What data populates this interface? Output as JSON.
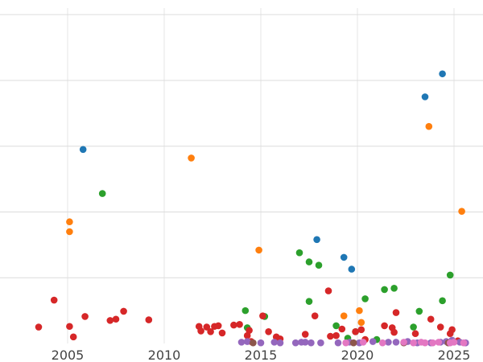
{
  "chart_data": {
    "type": "scatter",
    "title": "",
    "xlabel": "",
    "ylabel": "",
    "xlim": [
      2001.5,
      2026.5
    ],
    "ylim": [
      0,
      5.1
    ],
    "x_ticks": [
      2005,
      2010,
      2015,
      2020,
      2025
    ],
    "y_gridlines": [
      1,
      2,
      3,
      4,
      5
    ],
    "grid": true,
    "legend": "none",
    "series": [
      {
        "color": "#1f77b4",
        "points": [
          [
            2005.8,
            2.95
          ],
          [
            2017.9,
            1.58
          ],
          [
            2019.3,
            1.31
          ],
          [
            2019.7,
            1.13
          ],
          [
            2023.5,
            3.75
          ],
          [
            2024.4,
            4.1
          ]
        ]
      },
      {
        "color": "#ff7f0e",
        "points": [
          [
            2005.1,
            1.85
          ],
          [
            2005.1,
            1.7
          ],
          [
            2011.4,
            2.82
          ],
          [
            2014.9,
            1.42
          ],
          [
            2019.3,
            0.42
          ],
          [
            2020.1,
            0.5
          ],
          [
            2020.2,
            0.32
          ],
          [
            2023.7,
            3.3
          ],
          [
            2025.4,
            2.01
          ]
        ]
      },
      {
        "color": "#2ca02c",
        "points": [
          [
            2006.8,
            2.28
          ],
          [
            2014.2,
            0.5
          ],
          [
            2014.3,
            0.24
          ],
          [
            2015.2,
            0.41
          ],
          [
            2017.0,
            1.38
          ],
          [
            2017.5,
            1.24
          ],
          [
            2017.5,
            0.64
          ],
          [
            2018.0,
            1.19
          ],
          [
            2018.9,
            0.27
          ],
          [
            2019.9,
            0.18
          ],
          [
            2020.4,
            0.68
          ],
          [
            2021.4,
            0.82
          ],
          [
            2021.9,
            0.84
          ],
          [
            2022.9,
            0.25
          ],
          [
            2023.2,
            0.49
          ],
          [
            2024.4,
            0.65
          ],
          [
            2024.8,
            1.04
          ],
          [
            2019.5,
            0.08
          ],
          [
            2021.0,
            0.06
          ]
        ]
      },
      {
        "color": "#d62728",
        "points": [
          [
            2003.5,
            0.25
          ],
          [
            2004.3,
            0.66
          ],
          [
            2005.1,
            0.26
          ],
          [
            2005.3,
            0.1
          ],
          [
            2005.9,
            0.41
          ],
          [
            2007.2,
            0.35
          ],
          [
            2007.5,
            0.37
          ],
          [
            2007.9,
            0.49
          ],
          [
            2009.2,
            0.36
          ],
          [
            2011.8,
            0.26
          ],
          [
            2011.9,
            0.19
          ],
          [
            2012.2,
            0.25
          ],
          [
            2012.4,
            0.18
          ],
          [
            2012.6,
            0.26
          ],
          [
            2012.8,
            0.27
          ],
          [
            2013.0,
            0.16
          ],
          [
            2013.6,
            0.28
          ],
          [
            2013.9,
            0.29
          ],
          [
            2014.3,
            0.12
          ],
          [
            2014.4,
            0.2
          ],
          [
            2014.5,
            0.03
          ],
          [
            2015.1,
            0.42
          ],
          [
            2015.4,
            0.18
          ],
          [
            2015.8,
            0.1
          ],
          [
            2016.0,
            0.07
          ],
          [
            2017.3,
            0.14
          ],
          [
            2017.8,
            0.42
          ],
          [
            2018.5,
            0.8
          ],
          [
            2018.6,
            0.11
          ],
          [
            2018.9,
            0.12
          ],
          [
            2019.2,
            0.22
          ],
          [
            2019.9,
            0.18
          ],
          [
            2020.2,
            0.21
          ],
          [
            2020.4,
            0.06
          ],
          [
            2021.4,
            0.27
          ],
          [
            2021.8,
            0.24
          ],
          [
            2021.9,
            0.17
          ],
          [
            2022.0,
            0.47
          ],
          [
            2023.0,
            0.15
          ],
          [
            2023.8,
            0.37
          ],
          [
            2024.3,
            0.25
          ],
          [
            2024.8,
            0.15
          ],
          [
            2024.9,
            0.21
          ],
          [
            2025.2,
            0.04
          ]
        ]
      },
      {
        "color": "#9467bd",
        "points": [
          [
            2014.0,
            0.02
          ],
          [
            2014.3,
            0.03
          ],
          [
            2015.0,
            0.01
          ],
          [
            2015.7,
            0.02
          ],
          [
            2016.0,
            0.01
          ],
          [
            2016.8,
            0.01
          ],
          [
            2017.1,
            0.02
          ],
          [
            2017.3,
            0.02
          ],
          [
            2017.6,
            0.01
          ],
          [
            2018.1,
            0.01
          ],
          [
            2019.0,
            0.01
          ],
          [
            2019.6,
            0.02
          ],
          [
            2020.1,
            0.01
          ],
          [
            2020.8,
            0.03
          ],
          [
            2021.6,
            0.02
          ],
          [
            2022.0,
            0.02
          ],
          [
            2022.6,
            0.03
          ],
          [
            2023.1,
            0.01
          ],
          [
            2023.8,
            0.01
          ],
          [
            2024.3,
            0.02
          ],
          [
            2024.6,
            0.03
          ],
          [
            2024.9,
            0.05
          ],
          [
            2025.3,
            0.02
          ],
          [
            2025.6,
            0.01
          ]
        ]
      },
      {
        "color": "#8c564b",
        "points": [
          [
            2014.6,
            0.01
          ],
          [
            2019.8,
            0.01
          ],
          [
            2022.4,
            0.01
          ],
          [
            2024.7,
            0.01
          ]
        ]
      },
      {
        "color": "#e377c2",
        "points": [
          [
            2019.4,
            0.01
          ],
          [
            2020.3,
            0.02
          ],
          [
            2021.3,
            0.01
          ],
          [
            2022.4,
            0.02
          ],
          [
            2022.9,
            0.01
          ],
          [
            2023.3,
            0.02
          ],
          [
            2023.5,
            0.01
          ],
          [
            2023.9,
            0.01
          ],
          [
            2024.2,
            0.02
          ],
          [
            2024.8,
            0.01
          ],
          [
            2025.0,
            0.02
          ],
          [
            2025.5,
            0.01
          ]
        ]
      }
    ]
  }
}
